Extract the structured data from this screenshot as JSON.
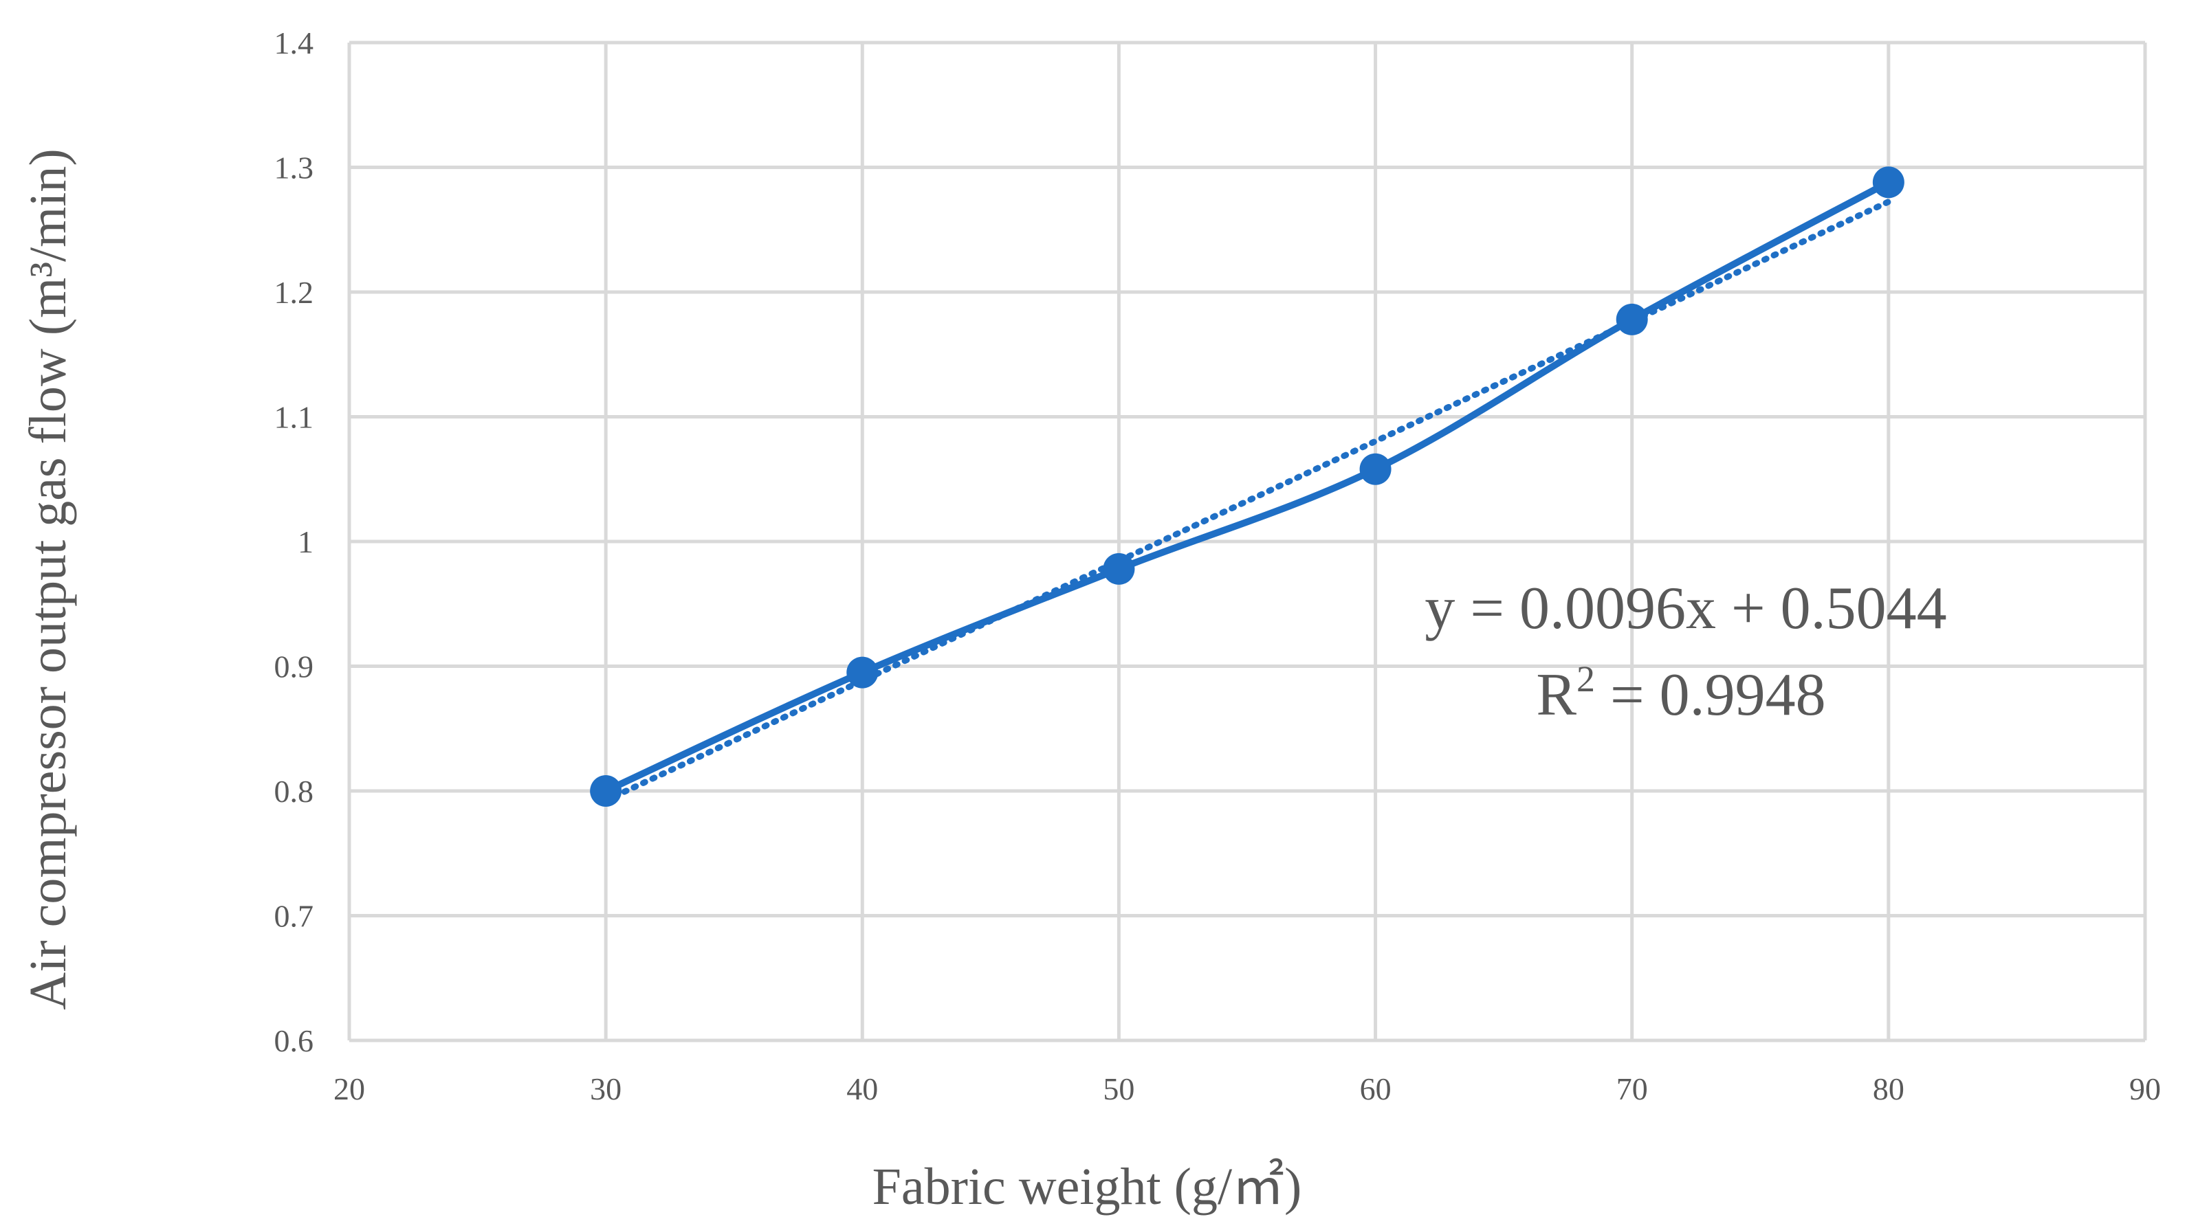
{
  "chart_data": {
    "type": "scatter",
    "xlabel": "Fabric weight (g/㎡)",
    "ylabel": "Air compressor output gas flow (m³/min)",
    "xlim": [
      20,
      90
    ],
    "ylim": [
      0.6,
      1.4
    ],
    "xticks": [
      20,
      30,
      40,
      50,
      60,
      70,
      80,
      90
    ],
    "yticks": [
      0.6,
      0.7,
      0.8,
      0.9,
      1.0,
      1.1,
      1.2,
      1.3,
      1.4
    ],
    "xtick_labels": [
      "20",
      "30",
      "40",
      "50",
      "60",
      "70",
      "80",
      "90"
    ],
    "ytick_labels": [
      "0.6",
      "0.7",
      "0.8",
      "0.9",
      "1",
      "1.1",
      "1.2",
      "1.3",
      "1.4"
    ],
    "grid": true,
    "line_style": "smooth",
    "series": [
      {
        "x": [
          30,
          40,
          50,
          60,
          70,
          80
        ],
        "y": [
          0.8,
          0.895,
          0.978,
          1.058,
          1.178,
          1.288
        ],
        "color": "#1F6FC5",
        "markers": true
      }
    ],
    "trendline": {
      "type": "linear",
      "slope": 0.0096,
      "intercept": 0.5044,
      "style": "dotted",
      "color": "#1F6FC5",
      "x_range": [
        30,
        80
      ]
    },
    "annotations": {
      "equation": "y = 0.0096x + 0.5044",
      "r2_prefix": "R",
      "r2_exponent": "2",
      "r2_suffix": " = 0.9948"
    }
  }
}
